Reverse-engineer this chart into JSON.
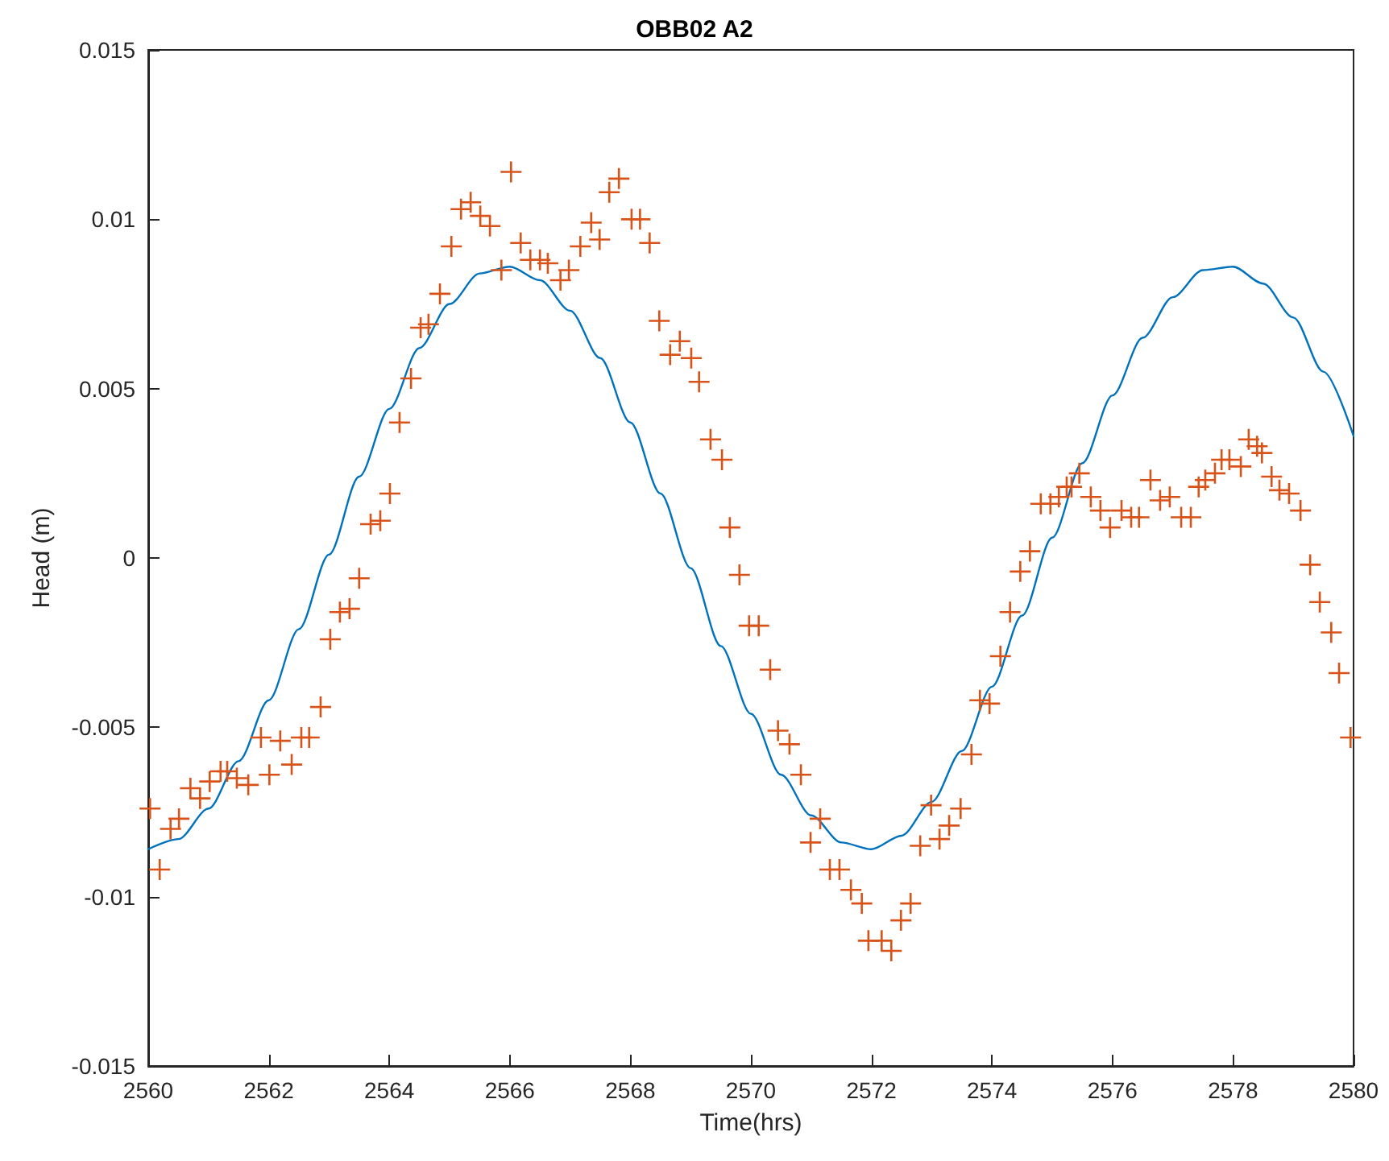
{
  "chart_data": {
    "type": "scatter",
    "title": "OBB02 A2",
    "xlabel": "Time(hrs)",
    "ylabel": "Head (m)",
    "xlim": [
      2560,
      2580
    ],
    "xticks": [
      2560,
      2562,
      2564,
      2566,
      2568,
      2570,
      2572,
      2574,
      2576,
      2578,
      2580
    ],
    "ylim": [
      -0.015,
      0.015
    ],
    "yticks": [
      -0.015,
      -0.01,
      -0.005,
      0,
      0.005,
      0.01,
      0.015
    ],
    "grid": false,
    "series": [
      {
        "type": "line",
        "color": "#0072bd",
        "marker": "none",
        "line_style": "solid",
        "x": [
          2560,
          2560.5,
          2561,
          2561.5,
          2562,
          2562.5,
          2563,
          2563.5,
          2564,
          2564.5,
          2565,
          2565.5,
          2566,
          2566.5,
          2567,
          2567.5,
          2568,
          2568.5,
          2569,
          2569.5,
          2570,
          2570.5,
          2571,
          2571.5,
          2572,
          2572.5,
          2573,
          2573.5,
          2574,
          2574.5,
          2575,
          2575.5,
          2576,
          2576.5,
          2577,
          2577.5,
          2578,
          2578.5,
          2579,
          2579.5,
          2580
        ],
        "values": [
          -0.0086,
          -0.0083,
          -0.0074,
          -0.006,
          -0.0042,
          -0.0021,
          0.0001,
          0.0024,
          0.0044,
          0.0062,
          0.0075,
          0.0084,
          0.0086,
          0.0082,
          0.0073,
          0.0059,
          0.004,
          0.0019,
          -0.0003,
          -0.0026,
          -0.0046,
          -0.0064,
          -0.0076,
          -0.0084,
          -0.0086,
          -0.0082,
          -0.0072,
          -0.0057,
          -0.0038,
          -0.0017,
          0.0006,
          0.0028,
          0.0048,
          0.0065,
          0.0077,
          0.0085,
          0.0086,
          0.0081,
          0.0071,
          0.0055,
          0.0036
        ]
      },
      {
        "color": "#d95319",
        "marker": "cross",
        "x": [
          2560.03,
          2560.19,
          2560.37,
          2560.51,
          2560.7,
          2560.86,
          2561.02,
          2561.2,
          2561.31,
          2561.47,
          2561.66,
          2561.87,
          2562.01,
          2562.19,
          2562.38,
          2562.54,
          2562.67,
          2562.86,
          2563.02,
          2563.18,
          2563.34,
          2563.5,
          2563.69,
          2563.85,
          2564.01,
          2564.17,
          2564.36,
          2564.52,
          2564.65,
          2564.84,
          2565.03,
          2565.19,
          2565.35,
          2565.51,
          2565.67,
          2565.86,
          2566.02,
          2566.18,
          2566.34,
          2566.5,
          2566.63,
          2566.84,
          2566.98,
          2567.17,
          2567.35,
          2567.49,
          2567.65,
          2567.81,
          2568.02,
          2568.16,
          2568.32,
          2568.48,
          2568.66,
          2568.82,
          2569.01,
          2569.14,
          2569.33,
          2569.52,
          2569.65,
          2569.81,
          2569.97,
          2570.13,
          2570.32,
          2570.45,
          2570.64,
          2570.83,
          2570.99,
          2571.15,
          2571.31,
          2571.47,
          2571.66,
          2571.84,
          2571.95,
          2572.17,
          2572.33,
          2572.49,
          2572.65,
          2572.81,
          2572.99,
          2573.13,
          2573.29,
          2573.48,
          2573.66,
          2573.8,
          2573.96,
          2574.14,
          2574.3,
          2574.47,
          2574.63,
          2574.81,
          2574.97,
          2575.11,
          2575.24,
          2575.32,
          2575.45,
          2575.64,
          2575.8,
          2575.96,
          2576.15,
          2576.31,
          2576.44,
          2576.63,
          2576.79,
          2576.95,
          2577.14,
          2577.3,
          2577.43,
          2577.54,
          2577.7,
          2577.81,
          2577.94,
          2578.13,
          2578.26,
          2578.4,
          2578.48,
          2578.64,
          2578.77,
          2578.93,
          2579.12,
          2579.28,
          2579.44,
          2579.63,
          2579.76,
          2579.95
        ],
        "values": [
          -0.0074,
          -0.0092,
          -0.008,
          -0.0077,
          -0.0068,
          -0.0071,
          -0.0066,
          -0.0063,
          -0.0063,
          -0.0065,
          -0.0067,
          -0.0053,
          -0.0064,
          -0.0054,
          -0.0061,
          -0.0053,
          -0.0053,
          -0.0044,
          -0.0024,
          -0.0016,
          -0.0015,
          -0.0006,
          0.001,
          0.0011,
          0.0019,
          0.004,
          0.0053,
          0.0068,
          0.0069,
          0.0078,
          0.0092,
          0.0103,
          0.0105,
          0.0101,
          0.0098,
          0.0085,
          0.0114,
          0.0093,
          0.0088,
          0.0088,
          0.0087,
          0.0082,
          0.0085,
          0.0092,
          0.0099,
          0.0094,
          0.0108,
          0.0112,
          0.01,
          0.01,
          0.0093,
          0.007,
          0.006,
          0.0064,
          0.0059,
          0.0052,
          0.0035,
          0.0029,
          0.0009,
          -0.0005,
          -0.002,
          -0.002,
          -0.0033,
          -0.0051,
          -0.0055,
          -0.0064,
          -0.0084,
          -0.0077,
          -0.0092,
          -0.0092,
          -0.0098,
          -0.0102,
          -0.0113,
          -0.0113,
          -0.0116,
          -0.0107,
          -0.0102,
          -0.0085,
          -0.0073,
          -0.0083,
          -0.0079,
          -0.0074,
          -0.0058,
          -0.0042,
          -0.0043,
          -0.0029,
          -0.0016,
          -0.0004,
          0.0002,
          0.0016,
          0.0016,
          0.0018,
          0.0021,
          0.0021,
          0.0025,
          0.0018,
          0.0014,
          0.0009,
          0.0014,
          0.0012,
          0.0012,
          0.0023,
          0.0017,
          0.0018,
          0.0012,
          0.0012,
          0.0021,
          0.0023,
          0.0025,
          0.0029,
          0.0029,
          0.0027,
          0.0035,
          0.0033,
          0.0031,
          0.0024,
          0.002,
          0.0019,
          0.0014,
          -0.0002,
          -0.0013,
          -0.0022,
          -0.0034,
          -0.0053
        ]
      }
    ]
  }
}
